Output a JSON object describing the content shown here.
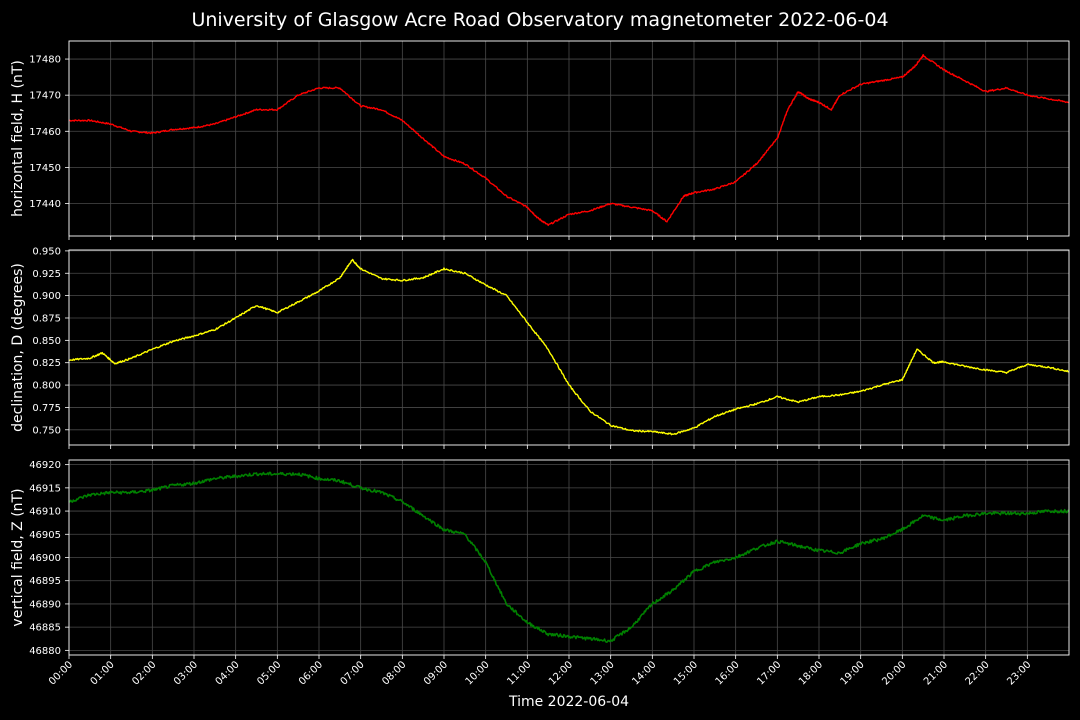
{
  "chart_data": {
    "type": "line",
    "title": "University of Glasgow Acre Road Observatory magnetometer 2022-06-04",
    "xlabel": "Time 2022-06-04",
    "x_ticks": [
      "00:00",
      "01:00",
      "02:00",
      "03:00",
      "04:00",
      "05:00",
      "06:00",
      "07:00",
      "08:00",
      "09:00",
      "10:00",
      "11:00",
      "12:00",
      "13:00",
      "14:00",
      "15:00",
      "16:00",
      "17:00",
      "18:00",
      "19:00",
      "20:00",
      "21:00",
      "22:00",
      "23:00"
    ],
    "xlim_hours": [
      0,
      24
    ],
    "grid": true,
    "panels": [
      {
        "ylabel": "horizontal field, H (nT)",
        "color": "#ff0000",
        "ylim": [
          17431,
          17485
        ],
        "y_ticks": [
          17440,
          17450,
          17460,
          17470,
          17480
        ],
        "decimals": 0,
        "series": [
          {
            "x": 0,
            "y": 17463
          },
          {
            "x": 0.5,
            "y": 17463
          },
          {
            "x": 1,
            "y": 17462
          },
          {
            "x": 1.5,
            "y": 17460
          },
          {
            "x": 2,
            "y": 17459.5
          },
          {
            "x": 2.5,
            "y": 17460.5
          },
          {
            "x": 3,
            "y": 17461
          },
          {
            "x": 3.5,
            "y": 17462
          },
          {
            "x": 4,
            "y": 17464
          },
          {
            "x": 4.5,
            "y": 17466
          },
          {
            "x": 5,
            "y": 17466
          },
          {
            "x": 5.5,
            "y": 17470
          },
          {
            "x": 6,
            "y": 17472
          },
          {
            "x": 6.5,
            "y": 17472
          },
          {
            "x": 7,
            "y": 17467
          },
          {
            "x": 7.5,
            "y": 17466
          },
          {
            "x": 8,
            "y": 17463
          },
          {
            "x": 8.5,
            "y": 17458
          },
          {
            "x": 9,
            "y": 17453
          },
          {
            "x": 9.5,
            "y": 17451
          },
          {
            "x": 10,
            "y": 17447
          },
          {
            "x": 10.5,
            "y": 17442
          },
          {
            "x": 11,
            "y": 17439
          },
          {
            "x": 11.25,
            "y": 17436
          },
          {
            "x": 11.5,
            "y": 17434
          },
          {
            "x": 12,
            "y": 17437
          },
          {
            "x": 12.5,
            "y": 17438
          },
          {
            "x": 13,
            "y": 17440
          },
          {
            "x": 13.5,
            "y": 17439
          },
          {
            "x": 14,
            "y": 17438
          },
          {
            "x": 14.35,
            "y": 17435
          },
          {
            "x": 14.75,
            "y": 17442
          },
          {
            "x": 15,
            "y": 17443
          },
          {
            "x": 15.5,
            "y": 17444
          },
          {
            "x": 16,
            "y": 17446
          },
          {
            "x": 16.5,
            "y": 17451
          },
          {
            "x": 17,
            "y": 17458
          },
          {
            "x": 17.25,
            "y": 17466
          },
          {
            "x": 17.5,
            "y": 17471
          },
          {
            "x": 17.75,
            "y": 17469
          },
          {
            "x": 18,
            "y": 17468
          },
          {
            "x": 18.3,
            "y": 17466
          },
          {
            "x": 18.5,
            "y": 17470
          },
          {
            "x": 19,
            "y": 17473
          },
          {
            "x": 19.5,
            "y": 17474
          },
          {
            "x": 20,
            "y": 17475
          },
          {
            "x": 20.3,
            "y": 17478
          },
          {
            "x": 20.5,
            "y": 17481
          },
          {
            "x": 21,
            "y": 17477
          },
          {
            "x": 21.5,
            "y": 17474
          },
          {
            "x": 22,
            "y": 17471
          },
          {
            "x": 22.5,
            "y": 17472
          },
          {
            "x": 23,
            "y": 17470
          },
          {
            "x": 23.5,
            "y": 17469
          },
          {
            "x": 24,
            "y": 17468
          }
        ]
      },
      {
        "ylabel": "declination, D (degrees)",
        "color": "#ffff00",
        "ylim": [
          0.733,
          0.951
        ],
        "y_ticks": [
          0.75,
          0.775,
          0.8,
          0.825,
          0.85,
          0.875,
          0.9,
          0.925,
          0.95
        ],
        "decimals": 3,
        "series": [
          {
            "x": 0,
            "y": 0.828
          },
          {
            "x": 0.5,
            "y": 0.83
          },
          {
            "x": 0.8,
            "y": 0.836
          },
          {
            "x": 1.1,
            "y": 0.824
          },
          {
            "x": 1.5,
            "y": 0.83
          },
          {
            "x": 2,
            "y": 0.84
          },
          {
            "x": 2.5,
            "y": 0.849
          },
          {
            "x": 3,
            "y": 0.855
          },
          {
            "x": 3.5,
            "y": 0.862
          },
          {
            "x": 4,
            "y": 0.875
          },
          {
            "x": 4.5,
            "y": 0.889
          },
          {
            "x": 5,
            "y": 0.881
          },
          {
            "x": 5.5,
            "y": 0.893
          },
          {
            "x": 6,
            "y": 0.905
          },
          {
            "x": 6.5,
            "y": 0.92
          },
          {
            "x": 6.8,
            "y": 0.94
          },
          {
            "x": 7,
            "y": 0.93
          },
          {
            "x": 7.5,
            "y": 0.919
          },
          {
            "x": 8,
            "y": 0.917
          },
          {
            "x": 8.5,
            "y": 0.92
          },
          {
            "x": 9,
            "y": 0.93
          },
          {
            "x": 9.5,
            "y": 0.925
          },
          {
            "x": 10,
            "y": 0.912
          },
          {
            "x": 10.5,
            "y": 0.9
          },
          {
            "x": 11,
            "y": 0.87
          },
          {
            "x": 11.5,
            "y": 0.84
          },
          {
            "x": 12,
            "y": 0.8
          },
          {
            "x": 12.5,
            "y": 0.771
          },
          {
            "x": 13,
            "y": 0.755
          },
          {
            "x": 13.5,
            "y": 0.749
          },
          {
            "x": 14,
            "y": 0.748
          },
          {
            "x": 14.5,
            "y": 0.745
          },
          {
            "x": 15,
            "y": 0.752
          },
          {
            "x": 15.5,
            "y": 0.765
          },
          {
            "x": 16,
            "y": 0.773
          },
          {
            "x": 16.5,
            "y": 0.779
          },
          {
            "x": 17,
            "y": 0.787
          },
          {
            "x": 17.5,
            "y": 0.781
          },
          {
            "x": 18,
            "y": 0.787
          },
          {
            "x": 18.5,
            "y": 0.789
          },
          {
            "x": 19,
            "y": 0.793
          },
          {
            "x": 19.5,
            "y": 0.8
          },
          {
            "x": 20,
            "y": 0.806
          },
          {
            "x": 20.35,
            "y": 0.84
          },
          {
            "x": 20.75,
            "y": 0.825
          },
          {
            "x": 21,
            "y": 0.826
          },
          {
            "x": 21.5,
            "y": 0.821
          },
          {
            "x": 22,
            "y": 0.817
          },
          {
            "x": 22.5,
            "y": 0.814
          },
          {
            "x": 23,
            "y": 0.823
          },
          {
            "x": 23.5,
            "y": 0.82
          },
          {
            "x": 24,
            "y": 0.815
          }
        ]
      },
      {
        "ylabel": "vertical field, Z (nT)",
        "color": "#008000",
        "ylim": [
          46879,
          46921
        ],
        "y_ticks": [
          46880,
          46885,
          46890,
          46895,
          46900,
          46905,
          46910,
          46915,
          46920
        ],
        "decimals": 0,
        "series": [
          {
            "x": 0,
            "y": 46912
          },
          {
            "x": 0.5,
            "y": 46913.5
          },
          {
            "x": 1,
            "y": 46914
          },
          {
            "x": 1.5,
            "y": 46914
          },
          {
            "x": 2,
            "y": 46914.5
          },
          {
            "x": 2.5,
            "y": 46915.5
          },
          {
            "x": 3,
            "y": 46916
          },
          {
            "x": 3.5,
            "y": 46917
          },
          {
            "x": 4,
            "y": 46917.5
          },
          {
            "x": 4.5,
            "y": 46918
          },
          {
            "x": 5,
            "y": 46918
          },
          {
            "x": 5.5,
            "y": 46918
          },
          {
            "x": 6,
            "y": 46917
          },
          {
            "x": 6.5,
            "y": 46916.5
          },
          {
            "x": 7,
            "y": 46915
          },
          {
            "x": 7.5,
            "y": 46914
          },
          {
            "x": 8,
            "y": 46912
          },
          {
            "x": 8.5,
            "y": 46909
          },
          {
            "x": 9,
            "y": 46906
          },
          {
            "x": 9.5,
            "y": 46905
          },
          {
            "x": 10,
            "y": 46899
          },
          {
            "x": 10.5,
            "y": 46890
          },
          {
            "x": 11,
            "y": 46886
          },
          {
            "x": 11.5,
            "y": 46883.5
          },
          {
            "x": 12,
            "y": 46883
          },
          {
            "x": 12.5,
            "y": 46882.5
          },
          {
            "x": 13,
            "y": 46882
          },
          {
            "x": 13.5,
            "y": 46885
          },
          {
            "x": 14,
            "y": 46890
          },
          {
            "x": 14.5,
            "y": 46893
          },
          {
            "x": 15,
            "y": 46897
          },
          {
            "x": 15.5,
            "y": 46899
          },
          {
            "x": 16,
            "y": 46900
          },
          {
            "x": 16.5,
            "y": 46902
          },
          {
            "x": 17,
            "y": 46903.5
          },
          {
            "x": 17.5,
            "y": 46902.5
          },
          {
            "x": 18,
            "y": 46901.5
          },
          {
            "x": 18.5,
            "y": 46901
          },
          {
            "x": 19,
            "y": 46903
          },
          {
            "x": 19.5,
            "y": 46904
          },
          {
            "x": 20,
            "y": 46906
          },
          {
            "x": 20.5,
            "y": 46909
          },
          {
            "x": 21,
            "y": 46908
          },
          {
            "x": 21.5,
            "y": 46909
          },
          {
            "x": 22,
            "y": 46909.5
          },
          {
            "x": 22.5,
            "y": 46909.5
          },
          {
            "x": 23,
            "y": 46909.5
          },
          {
            "x": 23.5,
            "y": 46910
          },
          {
            "x": 24,
            "y": 46910
          }
        ]
      }
    ]
  }
}
